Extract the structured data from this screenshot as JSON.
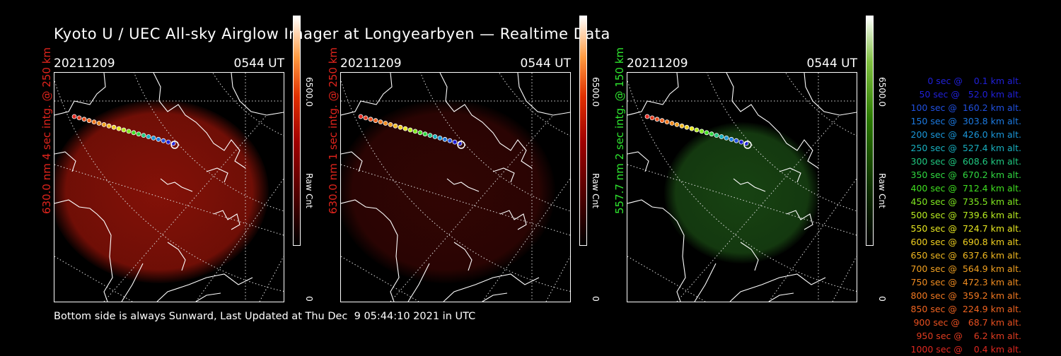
{
  "title": "Kyoto U / UEC All-sky Airglow Imager at Longyearbyen — Realtime Data",
  "footer": "Bottom side is always Sunward, Last Updated at Thu Dec  9 05:44:10 2021 in UTC",
  "colorbar": {
    "max_label": "6500.0",
    "min_label": "0",
    "unit_label": "Raw Cnt"
  },
  "panels": [
    {
      "date": "20211209",
      "time": "0544 UT",
      "channel_label": "630.0 nm 4 sec intg. @ 250 km",
      "label_color": "#e0241c",
      "colormap": "red",
      "glow_brightness": "bright"
    },
    {
      "date": "20211209",
      "time": "0544 UT",
      "channel_label": "630.0 nm 1 sec intg. @ 250 km",
      "label_color": "#e0241c",
      "colormap": "red",
      "glow_brightness": "dim"
    },
    {
      "date": "20211209",
      "time": "0544 UT",
      "channel_label": "557.7 nm 2 sec intg. @ 150 km",
      "label_color": "#2ee62e",
      "colormap": "green",
      "glow_brightness": "medium"
    }
  ],
  "trajectory_legend": [
    {
      "text": "0 sec @    0.1 km alt.",
      "color": "#2020d8"
    },
    {
      "text": "50 sec @   52.0 km alt.",
      "color": "#2020d8"
    },
    {
      "text": "100 sec @  160.2 km alt.",
      "color": "#2050e0"
    },
    {
      "text": "150 sec @  303.8 km alt.",
      "color": "#1c7ae0"
    },
    {
      "text": "200 sec @  426.0 km alt.",
      "color": "#1a96d8"
    },
    {
      "text": "250 sec @  527.4 km alt.",
      "color": "#18b0c0"
    },
    {
      "text": "300 sec @  608.6 km alt.",
      "color": "#20c880"
    },
    {
      "text": "350 sec @  670.2 km alt.",
      "color": "#30d840"
    },
    {
      "text": "400 sec @  712.4 km alt.",
      "color": "#40e020"
    },
    {
      "text": "450 sec @  735.5 km alt.",
      "color": "#80e820"
    },
    {
      "text": "500 sec @  739.6 km alt.",
      "color": "#b8ec20"
    },
    {
      "text": "550 sec @  724.7 km alt.",
      "color": "#e8e820"
    },
    {
      "text": "600 sec @  690.8 km alt.",
      "color": "#f0d020"
    },
    {
      "text": "650 sec @  637.6 km alt.",
      "color": "#f0b820"
    },
    {
      "text": "700 sec @  564.9 km alt.",
      "color": "#f0a020"
    },
    {
      "text": "750 sec @  472.3 km alt.",
      "color": "#f08c20"
    },
    {
      "text": "800 sec @  359.2 km alt.",
      "color": "#f07820"
    },
    {
      "text": "850 sec @  224.9 km alt.",
      "color": "#f06420"
    },
    {
      "text": "900 sec @   68.7 km alt.",
      "color": "#e85020"
    },
    {
      "text": "950 sec @    6.2 km alt.",
      "color": "#e03c20"
    },
    {
      "text": "1000 sec @    0.4 km alt.",
      "color": "#e02820"
    }
  ]
}
